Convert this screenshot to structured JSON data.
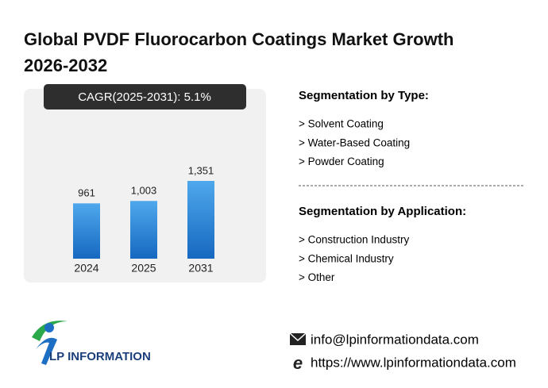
{
  "chart_data": {
    "type": "bar",
    "title": "Global PVDF Fluorocarbon Coatings Market Growth 2026-2032",
    "subtitle": "CAGR(2025-2031):  5.1%",
    "categories": [
      "2024",
      "2025",
      "2031"
    ],
    "values": [
      961,
      1003,
      1351
    ],
    "value_labels": [
      "961",
      "1,003",
      "1,351"
    ],
    "color": "#1f78d1"
  },
  "segments": [
    {
      "title": "Segmentation by Type:",
      "items": [
        "> Solvent Coating",
        "> Water-Based Coating",
        "> Powder Coating"
      ]
    },
    {
      "title": "Segmentation by Application:",
      "items": [
        "> Construction Industry",
        "> Chemical Industry",
        "> Other"
      ]
    }
  ],
  "contact": {
    "email": "info@lpinformationdata.com",
    "website": "https://www.lpinformationdata.com"
  },
  "logo": "LP INFORMATION"
}
